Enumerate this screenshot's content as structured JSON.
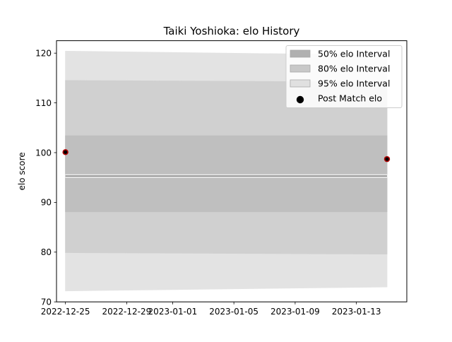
{
  "chart_data": {
    "type": "area",
    "title": "Taiki Yoshioka: elo History",
    "xlabel": "",
    "ylabel": "elo score",
    "x_type": "date",
    "xlim": [
      "2022-12-24T10:00",
      "2023-01-16T07:00"
    ],
    "ylim": [
      70,
      122.5
    ],
    "x_ticks": [
      "2022-12-25",
      "2022-12-29",
      "2023-01-01",
      "2023-01-05",
      "2023-01-09",
      "2023-01-13"
    ],
    "y_ticks": [
      70,
      80,
      90,
      100,
      110,
      120
    ],
    "grid": false,
    "legend_position": "upper right",
    "x": [
      "2022-12-25",
      "2023-01-15"
    ],
    "series": [
      {
        "name": "95% elo Interval",
        "kind": "band",
        "lower": [
          72.2,
          73.0
        ],
        "upper": [
          120.4,
          119.6
        ],
        "color": "#e3e3e3"
      },
      {
        "name": "80% elo Interval",
        "kind": "band",
        "lower": [
          79.9,
          79.6
        ],
        "upper": [
          114.5,
          114.2
        ],
        "color": "#d0d0d0"
      },
      {
        "name": "50% elo Interval",
        "kind": "band",
        "lower": [
          88.1,
          88.1
        ],
        "upper": [
          103.4,
          103.4
        ],
        "color": "#bfbfbf"
      },
      {
        "kind": "band",
        "lower": [
          95.0,
          95.0
        ],
        "upper": [
          95.6,
          95.6
        ],
        "color": "#ececec"
      },
      {
        "kind": "line",
        "values": [
          95.3,
          95.3
        ],
        "color": "#808080"
      },
      {
        "name": "Post Match elo",
        "kind": "points",
        "values": [
          100.1,
          98.7
        ],
        "color": "#b00000"
      }
    ],
    "legend": [
      {
        "label": "50% elo Interval",
        "swatch": "box",
        "color": "#b0b0b0"
      },
      {
        "label": "80% elo Interval",
        "swatch": "box",
        "color": "#c8c8c8"
      },
      {
        "label": "95% elo Interval",
        "swatch": "box",
        "color": "#e0e0e0"
      },
      {
        "label": "Post Match elo",
        "swatch": "dot",
        "color": "#000000"
      }
    ]
  }
}
